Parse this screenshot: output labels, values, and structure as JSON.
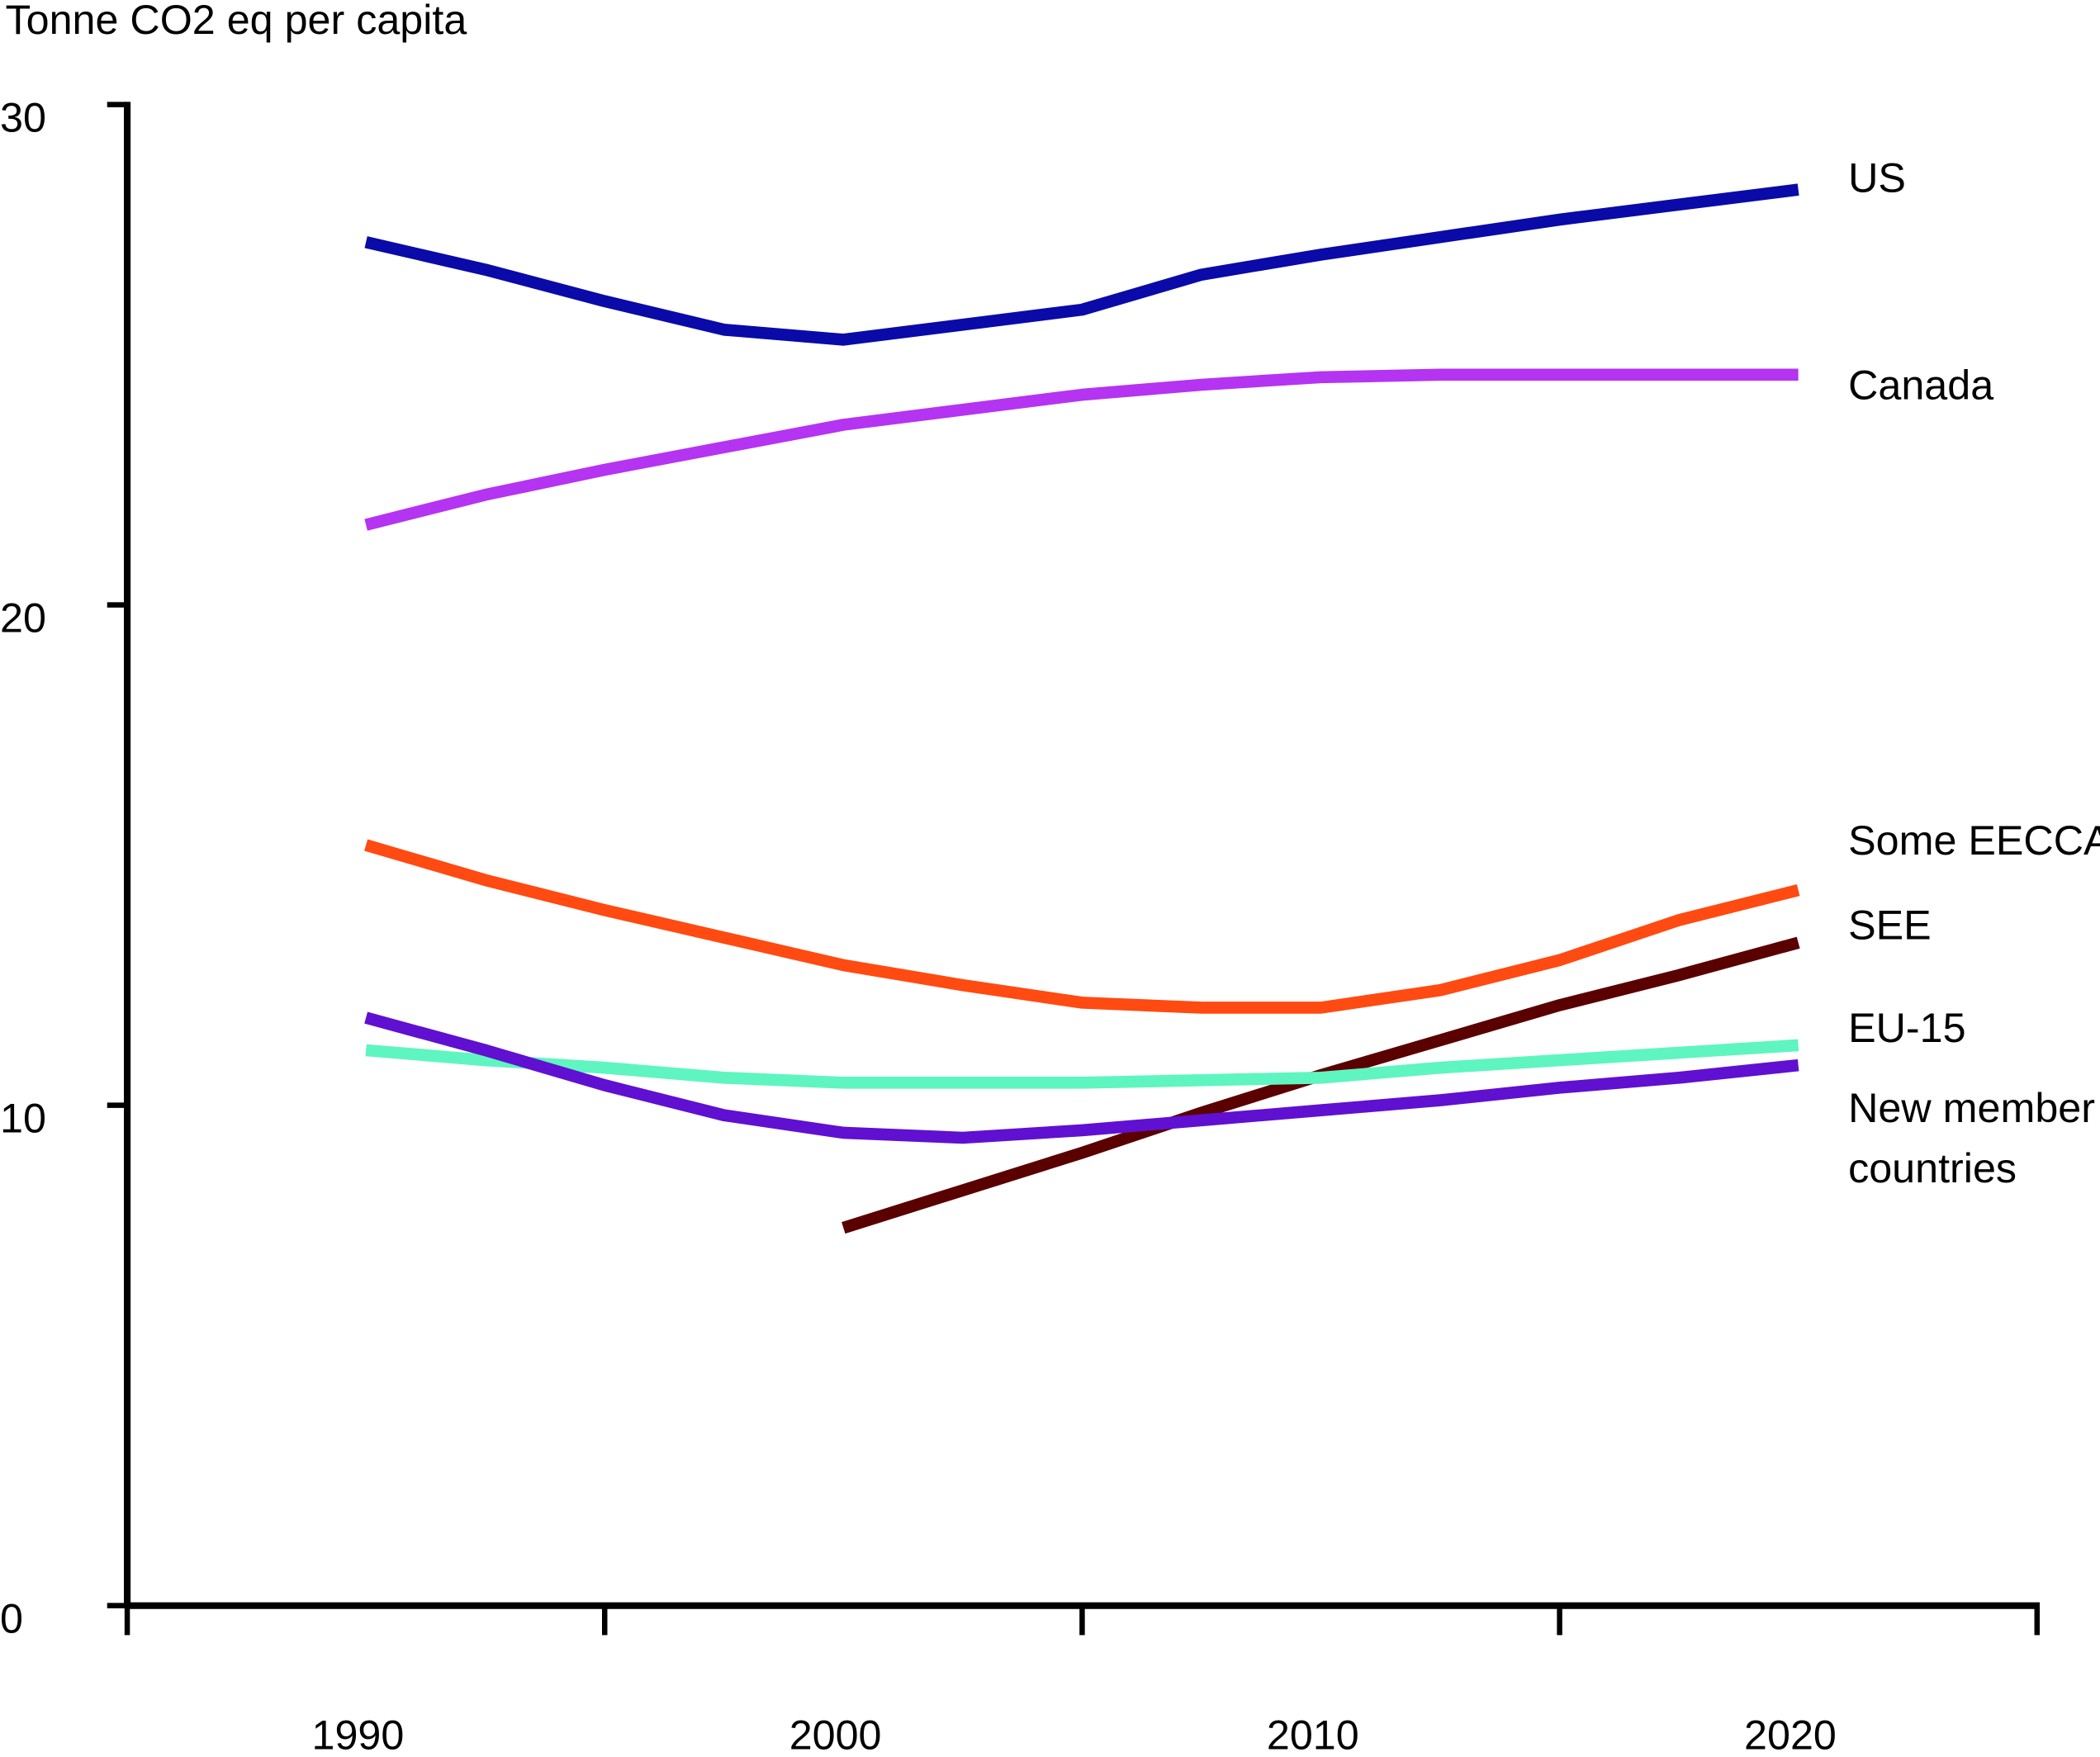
{
  "chart_data": {
    "type": "line",
    "y_label": "Tonne CO2 eq per capita",
    "x": [
      1990,
      1992.5,
      1995,
      1997.5,
      2000,
      2002.5,
      2005,
      2007.5,
      2010,
      2012.5,
      2015,
      2017.5,
      2020
    ],
    "xlim": [
      1985,
      2025
    ],
    "xticks": [
      1990,
      2000,
      2010,
      2020
    ],
    "ylim": [
      0,
      30
    ],
    "yticks": [
      0,
      10,
      20,
      30
    ],
    "series": [
      {
        "name": "US",
        "color": "#0a0aa8",
        "values": [
          27.25,
          26.7,
          26.07,
          25.5,
          25.3,
          25.6,
          25.9,
          26.6,
          27.0,
          27.35,
          27.7,
          28.0,
          28.3
        ]
      },
      {
        "name": "Canada",
        "color": "#b434f2",
        "values": [
          21.6,
          22.2,
          22.7,
          23.15,
          23.6,
          23.9,
          24.2,
          24.4,
          24.55,
          24.6,
          24.6,
          24.6,
          24.6
        ]
      },
      {
        "name": "Some EECCA",
        "color": "#ff4a12",
        "values": [
          15.2,
          14.5,
          13.9,
          13.35,
          12.8,
          12.4,
          12.05,
          11.95,
          11.95,
          12.3,
          12.9,
          13.7,
          14.3
        ]
      },
      {
        "name": "SEE",
        "color": "#5a0000",
        "values": [
          null,
          null,
          null,
          null,
          7.55,
          8.3,
          9.05,
          9.85,
          10.6,
          11.3,
          12.0,
          12.6,
          13.25
        ]
      },
      {
        "name": "EU-15",
        "color": "#5ff5c0",
        "values": [
          11.1,
          10.9,
          10.75,
          10.55,
          10.45,
          10.45,
          10.45,
          10.5,
          10.55,
          10.75,
          10.9,
          11.05,
          11.2
        ]
      },
      {
        "name": "New member countries",
        "color": "#6010d0",
        "values": [
          11.75,
          11.1,
          10.4,
          9.8,
          9.45,
          9.35,
          9.5,
          9.7,
          9.9,
          10.1,
          10.35,
          10.55,
          10.8
        ]
      }
    ]
  }
}
